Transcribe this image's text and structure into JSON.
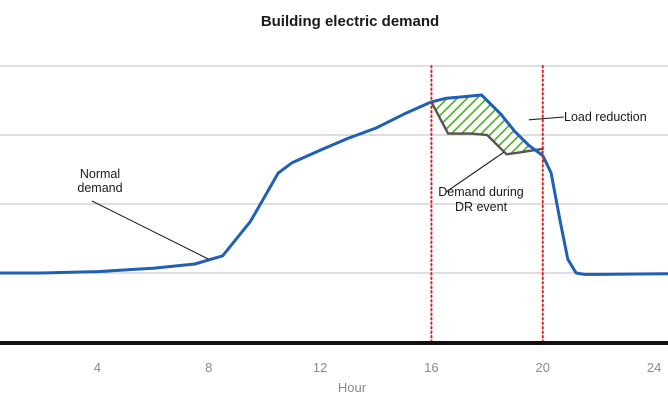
{
  "chart_data": {
    "type": "line",
    "title": "Building electric demand",
    "xlabel": "Hour",
    "ylabel": "",
    "xlim": [
      0.5,
      24.5
    ],
    "ylim": [
      0,
      4
    ],
    "x_ticks": [
      4,
      8,
      12,
      16,
      20,
      24
    ],
    "x_tick_labels": [
      "4",
      "8",
      "12",
      "16",
      "20",
      "24"
    ],
    "y_gridlines": [
      1,
      2,
      3,
      4
    ],
    "y_ticks_shown": false,
    "grid": true,
    "series": [
      {
        "name": "Normal demand",
        "color": "#1f5fb5",
        "x": [
          0.5,
          2,
          4,
          6,
          7.5,
          8.5,
          9.5,
          10.5,
          11,
          12,
          13,
          14,
          15,
          16,
          16.5,
          17,
          17.8,
          18.5,
          19,
          19.5,
          20,
          20.3,
          20.6,
          20.9,
          21.2,
          21.5,
          22,
          24.5
        ],
        "values": [
          1.0,
          1.0,
          1.02,
          1.07,
          1.13,
          1.25,
          1.75,
          2.45,
          2.6,
          2.78,
          2.95,
          3.1,
          3.3,
          3.48,
          3.53,
          3.55,
          3.58,
          3.3,
          3.05,
          2.85,
          2.7,
          2.45,
          1.8,
          1.2,
          1.0,
          0.98,
          0.98,
          0.99
        ]
      },
      {
        "name": "Demand during DR event",
        "color": "#555555",
        "x": [
          16,
          16.6,
          17.4,
          18,
          18.7,
          19.2,
          20
        ],
        "values": [
          3.48,
          3.02,
          3.02,
          3.0,
          2.72,
          2.75,
          2.8
        ]
      }
    ],
    "vertical_markers": [
      {
        "x": 16,
        "color": "#e02020",
        "style": "dotted"
      },
      {
        "x": 20,
        "color": "#e02020",
        "style": "dotted"
      }
    ],
    "shaded_region": {
      "label": "Load reduction",
      "between": [
        "Normal demand",
        "Demand during DR event"
      ],
      "x_range": [
        16,
        20
      ],
      "pattern": "diagonal-hatch",
      "color": "#4caf1c"
    },
    "annotations": [
      {
        "id": "normal",
        "lines": [
          "Normal",
          "demand"
        ],
        "target": [
          8.0,
          1.2
        ]
      },
      {
        "id": "load",
        "lines": [
          "Load reduction"
        ],
        "target": [
          19.5,
          3.22
        ]
      },
      {
        "id": "dr",
        "lines": [
          "Demand during",
          "DR event"
        ],
        "target": [
          18.6,
          2.75
        ]
      }
    ]
  }
}
